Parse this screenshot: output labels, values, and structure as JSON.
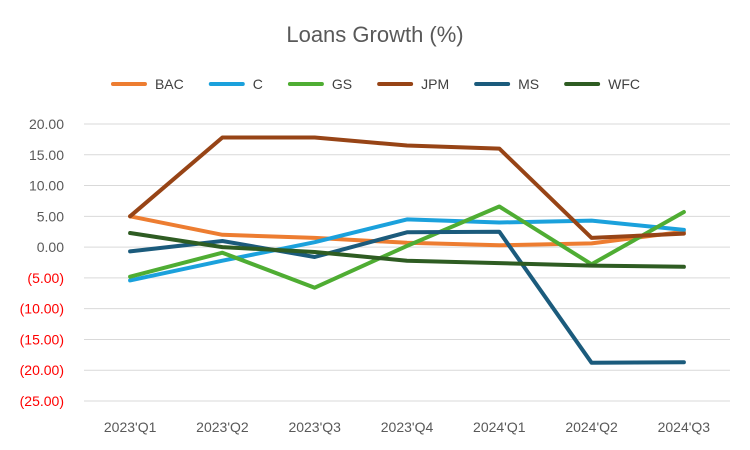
{
  "chart_data": {
    "type": "line",
    "title": "Loans Growth (%)",
    "xlabel": "",
    "ylabel": "",
    "categories": [
      "2023'Q1",
      "2023'Q2",
      "2023'Q3",
      "2023'Q4",
      "2024'Q1",
      "2024'Q2",
      "2024'Q3"
    ],
    "ylim": [
      -25,
      20
    ],
    "yticks": [
      20,
      15,
      10,
      5,
      0,
      -5,
      -10,
      -15,
      -20,
      -25
    ],
    "ytick_labels": [
      "20.00",
      "15.00",
      "10.00",
      "5.00",
      "0.00",
      "(5.00)",
      "(10.00)",
      "(15.00)",
      "(20.00)",
      "(25.00)"
    ],
    "ytick_negative_color": "#ff0000",
    "ytick_positive_color": "#595959",
    "grid": true,
    "legend_position": "top",
    "series": [
      {
        "name": "BAC",
        "color": "#ed7d31",
        "values": [
          5.0,
          2.0,
          1.5,
          0.7,
          0.3,
          0.6,
          2.5
        ]
      },
      {
        "name": "C",
        "color": "#1ba1dc",
        "values": [
          -5.4,
          -2.2,
          0.8,
          4.5,
          4.0,
          4.3,
          2.8
        ]
      },
      {
        "name": "GS",
        "color": "#4fad33",
        "values": [
          -4.8,
          -0.9,
          -6.6,
          0.2,
          6.6,
          -2.8,
          5.7
        ]
      },
      {
        "name": "JPM",
        "color": "#974416",
        "values": [
          5.0,
          17.8,
          17.8,
          16.5,
          16.0,
          1.5,
          2.2
        ]
      },
      {
        "name": "MS",
        "color": "#1b5b7c",
        "values": [
          -0.7,
          1.0,
          -1.6,
          2.4,
          2.5,
          -18.8,
          -18.7
        ]
      },
      {
        "name": "WFC",
        "color": "#2e5c22",
        "values": [
          2.3,
          0.0,
          -0.8,
          -2.2,
          -2.6,
          -3.0,
          -3.2
        ]
      }
    ]
  }
}
